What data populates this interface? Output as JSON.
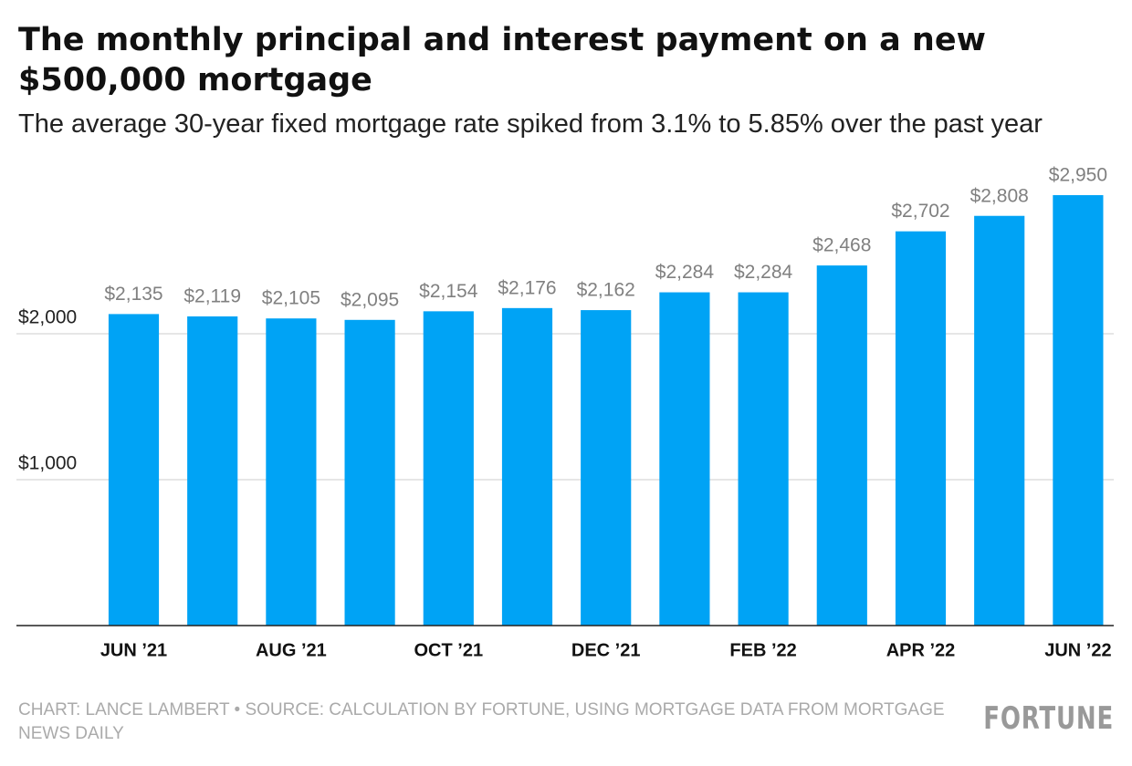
{
  "chart_data": {
    "type": "bar",
    "title": "The monthly principal and interest payment on a new $500,000 mortgage",
    "subtitle": "The average 30-year fixed mortgage rate spiked from 3.1% to 5.85% over the past year",
    "categories": [
      "JUN ’21",
      null,
      "AUG ’21",
      null,
      "OCT ’21",
      null,
      "DEC ’21",
      null,
      "FEB ’22",
      null,
      "APR ’22",
      null,
      "JUN ’22"
    ],
    "values": [
      2135,
      2119,
      2105,
      2095,
      2154,
      2176,
      2162,
      2284,
      2284,
      2468,
      2702,
      2808,
      2950
    ],
    "value_labels": [
      "$2,135",
      "$2,119",
      "$2,105",
      "$2,095",
      "$2,154",
      "$2,176",
      "$2,162",
      "$2,284",
      "$2,284",
      "$2,468",
      "$2,702",
      "$2,808",
      "$2,950"
    ],
    "color": "#00a3f5",
    "ylim": [
      0,
      3000
    ],
    "yticks": [
      {
        "value": 1000,
        "label": "$1,000"
      },
      {
        "value": 2000,
        "label": "$2,000"
      }
    ],
    "grid": true,
    "source": "CHART: LANCE LAMBERT • SOURCE: CALCULATION BY FORTUNE, USING MORTGAGE DATA FROM MORTGAGE NEWS DAILY",
    "logo": "FORTUNE"
  }
}
